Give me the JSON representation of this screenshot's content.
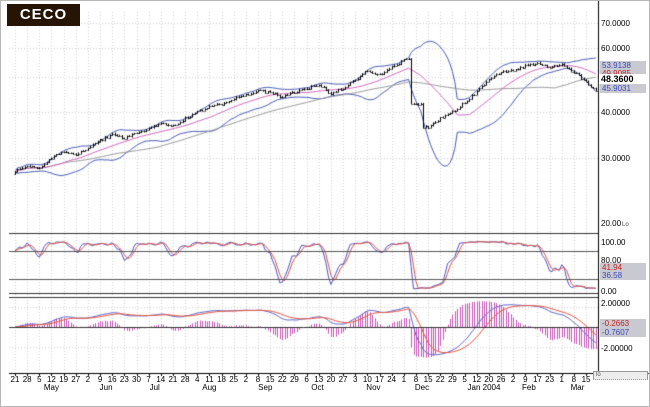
{
  "logo": {
    "text": "CECO"
  },
  "colors": {
    "band_blue": "#4a5ab8",
    "ma_pink": "#cf6abf",
    "ma_gray": "#9a9a9a",
    "bar_black": "#000000",
    "stoch_blue": "#4a55c8",
    "stoch_red": "#e05545",
    "macd_blue": "#6066c8",
    "macd_red": "#e8553f",
    "hist_magenta": "#c655b5",
    "grid": "#d4d4d4",
    "separator": "#333333",
    "ref_line": "#555555",
    "badge_bg": "#c9c9d1",
    "logo_bg": "#261504"
  },
  "main_panel": {
    "yticks": {
      "t70": "70.0000",
      "t60": "60.0000",
      "t40": "40.0000",
      "t30": "30.0000",
      "t20": "20.00"
    },
    "log_badge": "Lo",
    "badges": {
      "upper_band": "53.9138",
      "mid_band": "49.9085",
      "last_price": "48.3600",
      "lower_band": "45.9031"
    }
  },
  "stoch_panel": {
    "yticks": {
      "t100": "100.00",
      "t80": "80.00",
      "t0": "0.00"
    },
    "badges": {
      "d_value": "41.94",
      "k_value": "36.58"
    }
  },
  "macd_panel": {
    "yticks": {
      "t2": "2.00000",
      "tm2": "-2.00000"
    },
    "badges": {
      "signal_value": "-0.2663",
      "macd_value": "-0.7607"
    }
  },
  "footer_widget": {
    "label": "lo"
  },
  "xaxis": {
    "ticks": [
      "21",
      "28",
      "5",
      "12",
      "19",
      "27",
      "2",
      "9",
      "16",
      "23",
      "30",
      "7",
      "14",
      "21",
      "28",
      "4",
      "11",
      "18",
      "25",
      "2",
      "8",
      "15",
      "22",
      "29",
      "6",
      "13",
      "20",
      "27",
      "3",
      "10",
      "17",
      "24",
      "1",
      "8",
      "15",
      "22",
      "29",
      "5",
      "12",
      "20",
      "26",
      "2",
      "9",
      "17",
      "23",
      "1",
      "8",
      "15"
    ],
    "months": [
      {
        "label": "May",
        "pos": 3.0
      },
      {
        "label": "Jun",
        "pos": 7.5
      },
      {
        "label": "Jul",
        "pos": 11.5
      },
      {
        "label": "Aug",
        "pos": 16.0
      },
      {
        "label": "Sep",
        "pos": 20.6
      },
      {
        "label": "Oct",
        "pos": 24.9
      },
      {
        "label": "Nov",
        "pos": 29.5
      },
      {
        "label": "Dec",
        "pos": 33.5
      },
      {
        "label": "Jan 2004",
        "pos": 38.6
      },
      {
        "label": "Feb",
        "pos": 42.3
      },
      {
        "label": "Mar",
        "pos": 46.3
      }
    ]
  },
  "chart_data": {
    "type": "ohlc",
    "symbol": "CECO",
    "y_axis": {
      "scale": "log",
      "ticks": [
        70,
        60,
        50,
        40,
        30,
        20
      ],
      "last_price": 48.36
    },
    "x_weekly_labels": [
      "Apr 21",
      "Apr 28",
      "May 5",
      "May 12",
      "May 19",
      "May 27",
      "Jun 2",
      "Jun 9",
      "Jun 16",
      "Jun 23",
      "Jun 30",
      "Jul 7",
      "Jul 14",
      "Jul 21",
      "Jul 28",
      "Aug 4",
      "Aug 11",
      "Aug 18",
      "Aug 25",
      "Sep 2",
      "Sep 8",
      "Sep 15",
      "Sep 22",
      "Sep 29",
      "Oct 6",
      "Oct 13",
      "Oct 20",
      "Oct 27",
      "Nov 3",
      "Nov 10",
      "Nov 17",
      "Nov 24",
      "Dec 1",
      "Dec 8",
      "Dec 15",
      "Dec 22",
      "Dec 29",
      "Jan 5",
      "Jan 12",
      "Jan 20",
      "Jan 26",
      "Feb 2",
      "Feb 9",
      "Feb 17",
      "Feb 23",
      "Mar 1",
      "Mar 8",
      "Mar 15"
    ],
    "weekly_close": [
      27.6,
      28.6,
      28.2,
      30.0,
      31.2,
      30.6,
      32.0,
      33.5,
      34.8,
      34.0,
      35.2,
      36.0,
      37.5,
      36.6,
      38.5,
      40.0,
      41.5,
      42.2,
      43.5,
      44.5,
      46.0,
      45.2,
      44.0,
      45.5,
      46.5,
      47.5,
      45.0,
      46.5,
      49.0,
      52.0,
      50.5,
      53.0,
      55.5,
      42.0,
      36.5,
      38.5,
      40.0,
      42.5,
      45.5,
      49.5,
      51.5,
      52.0,
      53.5,
      54.5,
      53.0,
      54.0,
      51.5,
      48.4
    ],
    "overlays": {
      "bollinger_period": 20,
      "bollinger_width": 2,
      "sma_fast": 20,
      "sma_slow": 60,
      "upper_band_last": 53.9138,
      "mid_band_last": 49.9085,
      "lower_band_last": 45.9031
    },
    "indicator_panels": [
      {
        "type": "stochastic",
        "range": [
          0,
          100
        ],
        "ref_lines": [
          80,
          20
        ],
        "last_values": {
          "red": 41.94,
          "blue": 36.58
        }
      },
      {
        "type": "macd",
        "range": [
          -2,
          2
        ],
        "zero_line": 0,
        "last_values": {
          "red": -0.2663,
          "blue": -0.7607
        }
      }
    ]
  }
}
